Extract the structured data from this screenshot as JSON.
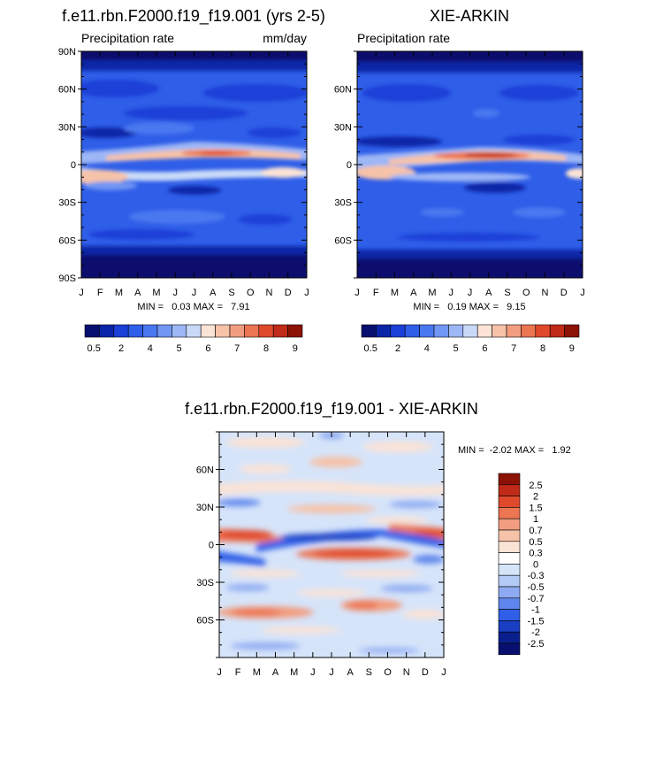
{
  "chart_data": [
    {
      "type": "heatmap",
      "title": "f.e11.rbn.F2000.f19_f19.001 (yrs 2-5)",
      "left_label": "Precipitation rate",
      "right_label": "mm/day",
      "x_tick_labels": [
        "J",
        "F",
        "M",
        "A",
        "M",
        "J",
        "J",
        "A",
        "S",
        "O",
        "N",
        "D",
        "J"
      ],
      "y_tick_labels": [
        "90N",
        "60N",
        "30N",
        "0",
        "30S",
        "60S",
        "90S"
      ],
      "y_tick_values": [
        90,
        60,
        30,
        0,
        -30,
        -60,
        -90
      ],
      "ylim": [
        -90,
        90
      ],
      "stats_text": "MIN =   0.03 MAX =   7.91",
      "colorbar_labels": [
        "0.5",
        "2",
        "4",
        "5",
        "6",
        "7",
        "8",
        "9"
      ]
    },
    {
      "type": "heatmap",
      "title": "XIE-ARKIN",
      "left_label": "Precipitation rate",
      "right_label": "",
      "x_tick_labels": [
        "J",
        "F",
        "M",
        "A",
        "M",
        "J",
        "J",
        "A",
        "S",
        "O",
        "N",
        "D",
        "J"
      ],
      "y_tick_labels": [
        "60N",
        "30N",
        "0",
        "30S",
        "60S"
      ],
      "y_tick_values": [
        60,
        30,
        0,
        -30,
        -60
      ],
      "ylim": [
        -90,
        90
      ],
      "stats_text": "MIN =   0.19 MAX =   9.15",
      "colorbar_labels": [
        "0.5",
        "2",
        "4",
        "5",
        "6",
        "7",
        "8",
        "9"
      ]
    },
    {
      "type": "heatmap",
      "title": "f.e11.rbn.F2000.f19_f19.001 - XIE-ARKIN",
      "x_tick_labels": [
        "J",
        "F",
        "M",
        "A",
        "M",
        "J",
        "J",
        "A",
        "S",
        "O",
        "N",
        "D",
        "J"
      ],
      "y_tick_labels": [
        "60N",
        "30N",
        "0",
        "30S",
        "60S"
      ],
      "y_tick_values": [
        60,
        30,
        0,
        -30,
        -60
      ],
      "ylim": [
        -90,
        90
      ],
      "stats_text": "MIN =  -2.02 MAX =   1.92",
      "colorbar_labels": [
        "2.5",
        "2",
        "1.5",
        "1",
        "0.7",
        "0.5",
        "0.3",
        "0",
        "-0.3",
        "-0.5",
        "-0.7",
        "-1",
        "-1.5",
        "-2",
        "-2.5"
      ]
    }
  ],
  "colors": {
    "seq_palette": [
      "#07106e",
      "#0b25a8",
      "#1a40d8",
      "#2f5ee8",
      "#4a78f0",
      "#7196f3",
      "#9cb6f6",
      "#c9daf8",
      "#fbe3d6",
      "#f6c2a8",
      "#f29d7f",
      "#ec7552",
      "#e0492c",
      "#c02a18",
      "#8c1206"
    ],
    "div_palette": [
      "#8c1206",
      "#c02a18",
      "#e0492c",
      "#ec7552",
      "#f29d7f",
      "#f6c2a8",
      "#fbe3d6",
      "#ffffff",
      "#d6e4fa",
      "#b4cbf6",
      "#8eaaf2",
      "#5f86ec",
      "#2f5ee8",
      "#1a3fc4",
      "#0a1f8c",
      "#07106e"
    ]
  }
}
